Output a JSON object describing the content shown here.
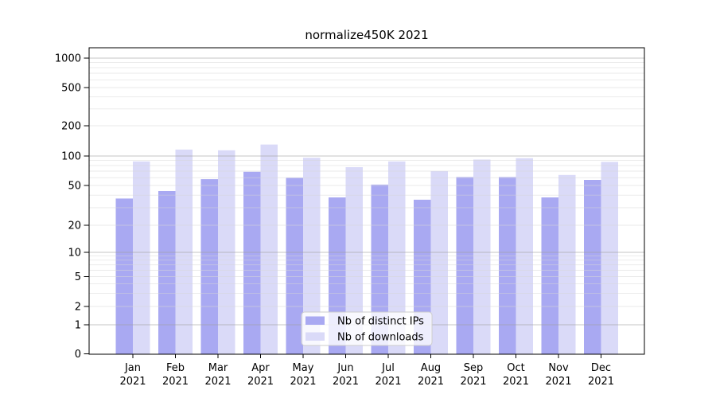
{
  "chart_data": {
    "type": "bar",
    "title": "normalize450K 2021",
    "categories": [
      "Jan",
      "Feb",
      "Mar",
      "Apr",
      "May",
      "Jun",
      "Jul",
      "Aug",
      "Sep",
      "Oct",
      "Nov",
      "Dec"
    ],
    "category_year": "2021",
    "series": [
      {
        "name": "Nb of distinct IPs",
        "color": "#a9a9f2",
        "values": [
          37,
          44,
          58,
          69,
          60,
          38,
          51,
          36,
          61,
          61,
          38,
          57
        ]
      },
      {
        "name": "Nb of downloads",
        "color": "#dadaf8",
        "values": [
          88,
          116,
          114,
          130,
          96,
          77,
          88,
          70,
          92,
          95,
          64,
          87
        ]
      }
    ],
    "xlabel": "",
    "ylabel": "",
    "yscale": "symlog",
    "yticks": [
      0,
      1,
      2,
      5,
      10,
      20,
      50,
      100,
      200,
      500,
      1000
    ],
    "ylim": [
      0,
      1275
    ],
    "grid": "both",
    "legend_position": "lower center"
  },
  "colors": {
    "background": "#ffffff",
    "spine": "#000000",
    "major_grid": "#c9c9c9",
    "minor_grid": "#ebebeb",
    "text": "#000000",
    "legend_border": "#cccccc",
    "legend_background": "#ffffff"
  }
}
